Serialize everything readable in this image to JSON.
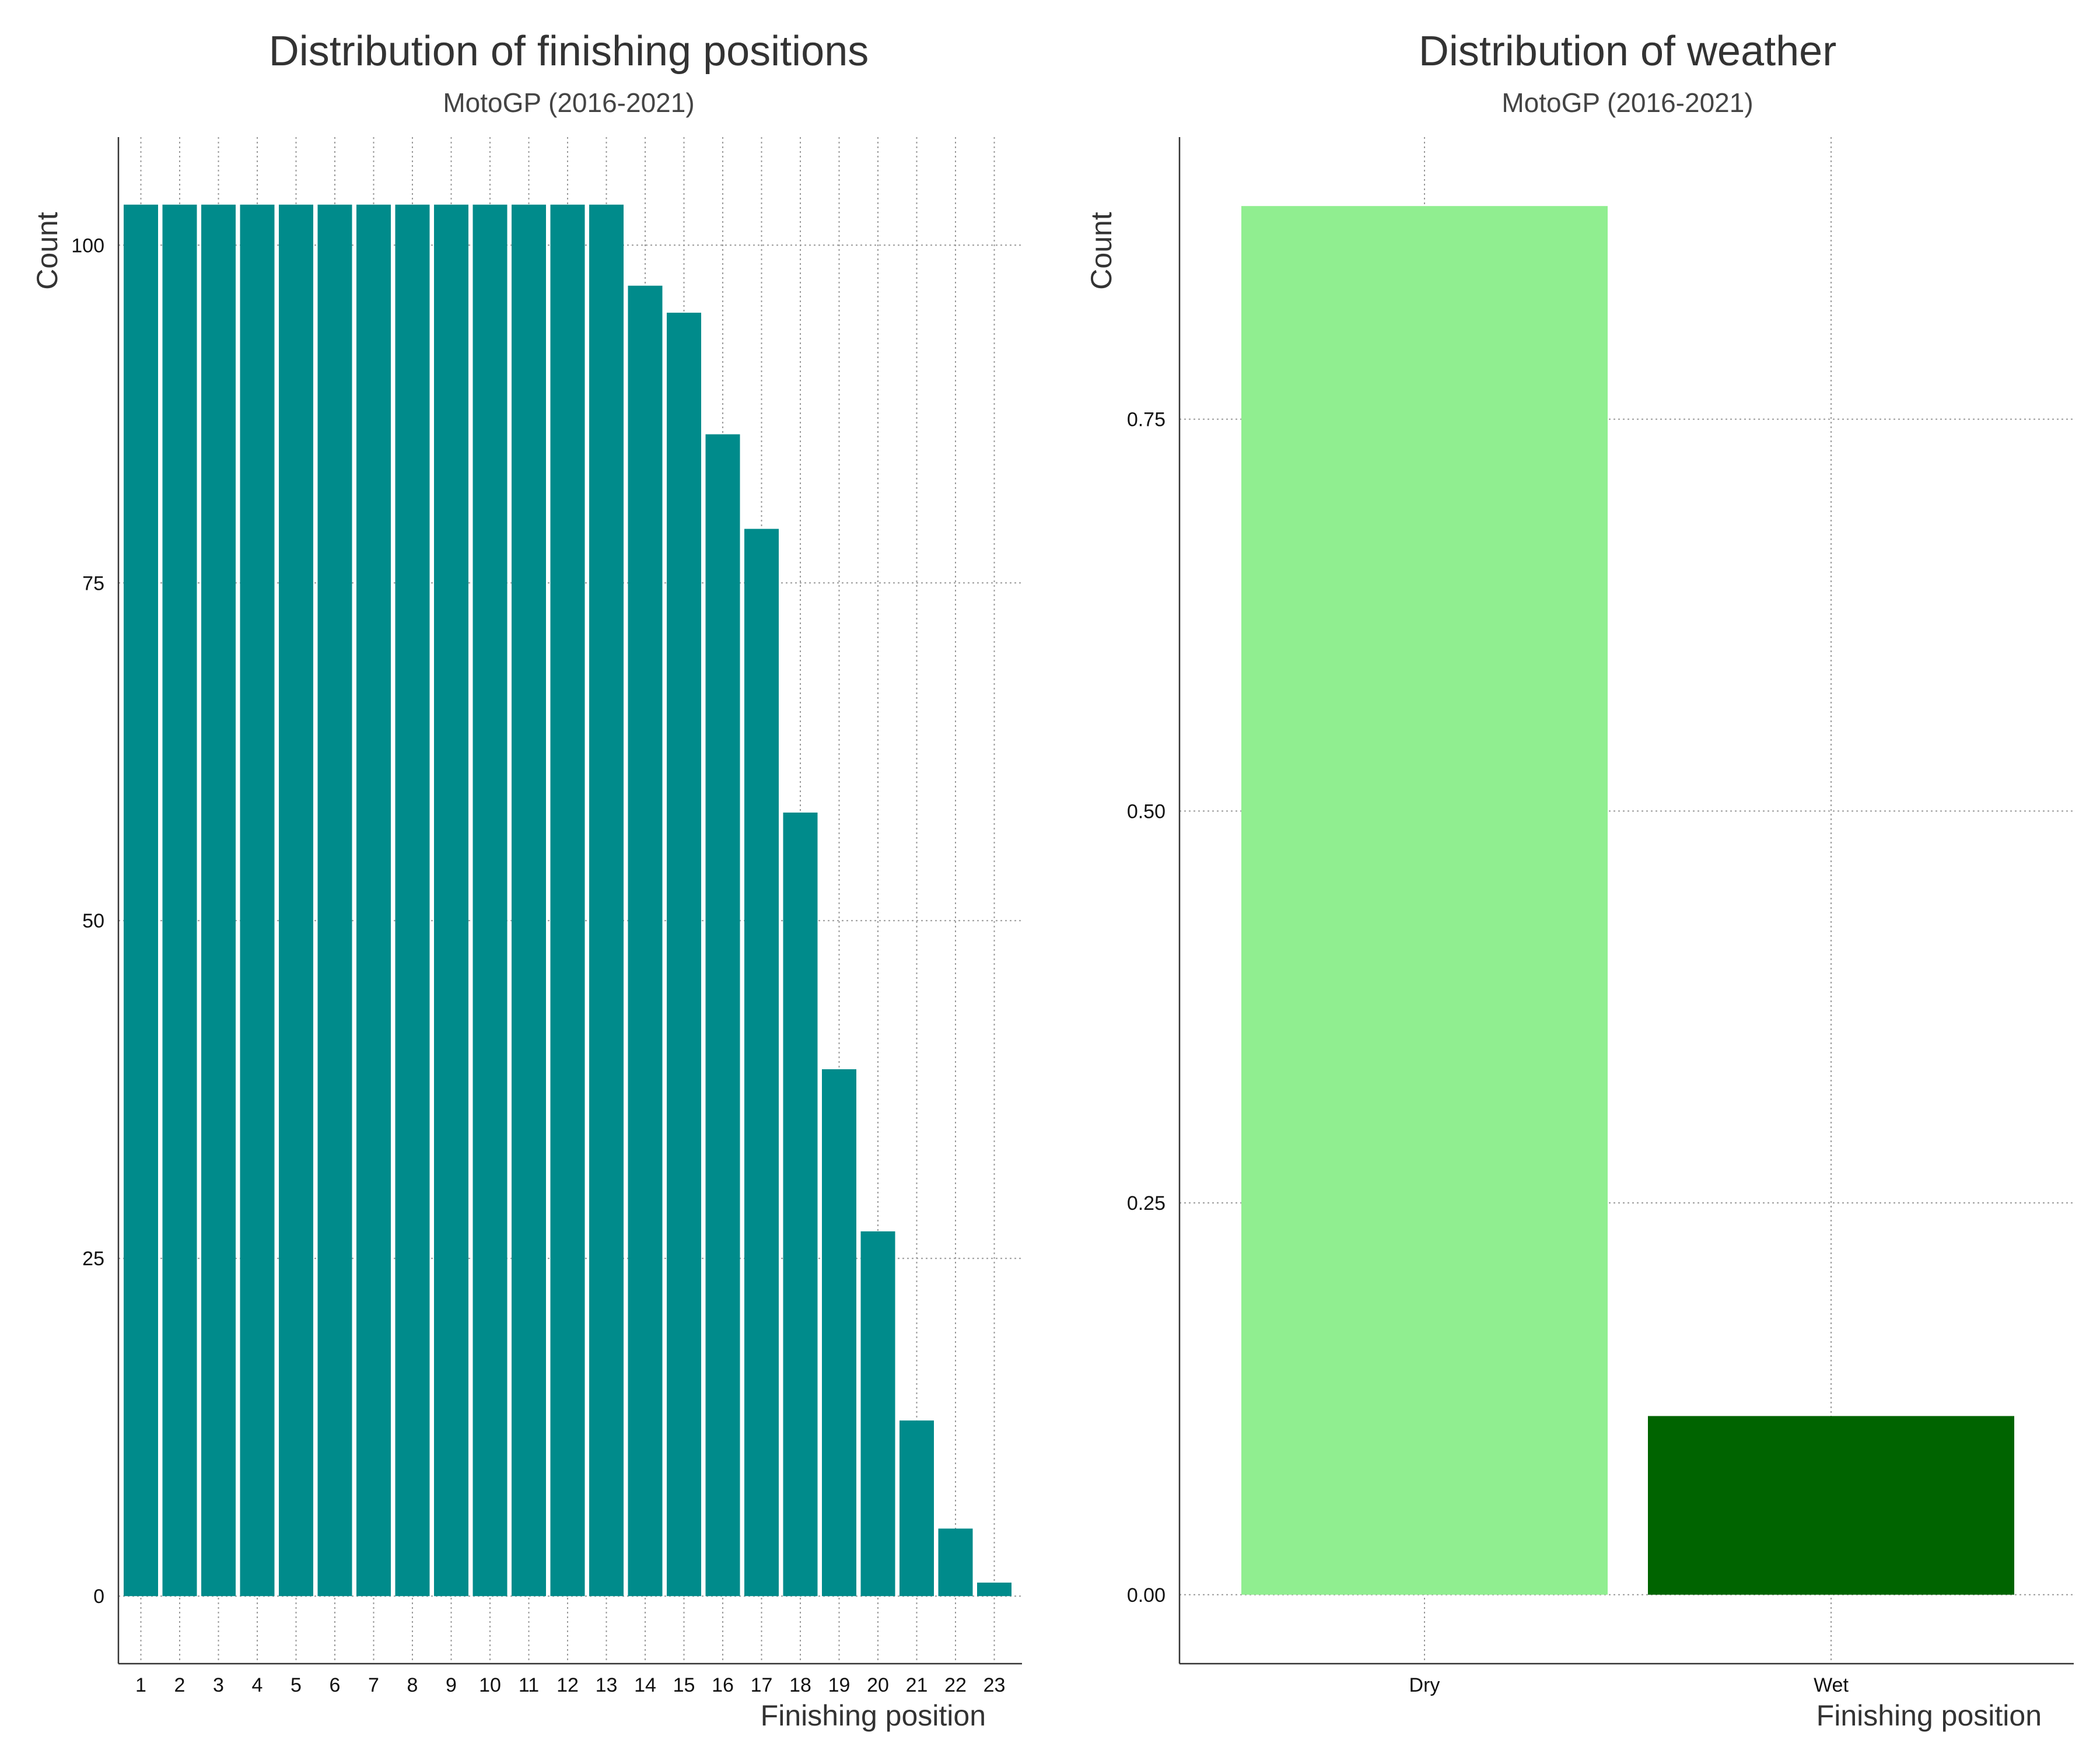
{
  "chart_data": [
    {
      "type": "bar",
      "title": "Distribution of finishing positions",
      "subtitle": "MotoGP (2016-2021)",
      "xlabel": "Finishing position",
      "ylabel": "Count",
      "categories": [
        "1",
        "2",
        "3",
        "4",
        "5",
        "6",
        "7",
        "8",
        "9",
        "10",
        "11",
        "12",
        "13",
        "14",
        "15",
        "16",
        "17",
        "18",
        "19",
        "20",
        "21",
        "22",
        "23"
      ],
      "values": [
        103,
        103,
        103,
        103,
        103,
        103,
        103,
        103,
        103,
        103,
        103,
        103,
        103,
        97,
        95,
        86,
        79,
        58,
        39,
        27,
        13,
        5,
        1
      ],
      "y_ticks": [
        0,
        25,
        50,
        75,
        100
      ],
      "ylim": [
        -5,
        108
      ],
      "bar_color": "#008B8B",
      "grid": true
    },
    {
      "type": "bar",
      "title": "Distribution of weather",
      "subtitle": "MotoGP (2016-2021)",
      "xlabel": "Finishing position",
      "ylabel": "Count",
      "categories": [
        "Dry",
        "Wet"
      ],
      "values": [
        0.886,
        0.114
      ],
      "y_ticks": [
        0.0,
        0.25,
        0.5,
        0.75
      ],
      "y_tick_labels": [
        "0.00",
        "0.25",
        "0.50",
        "0.75"
      ],
      "ylim": [
        -0.044,
        0.93
      ],
      "bar_colors": [
        "#90EE90",
        "#006400"
      ],
      "grid": true
    }
  ]
}
